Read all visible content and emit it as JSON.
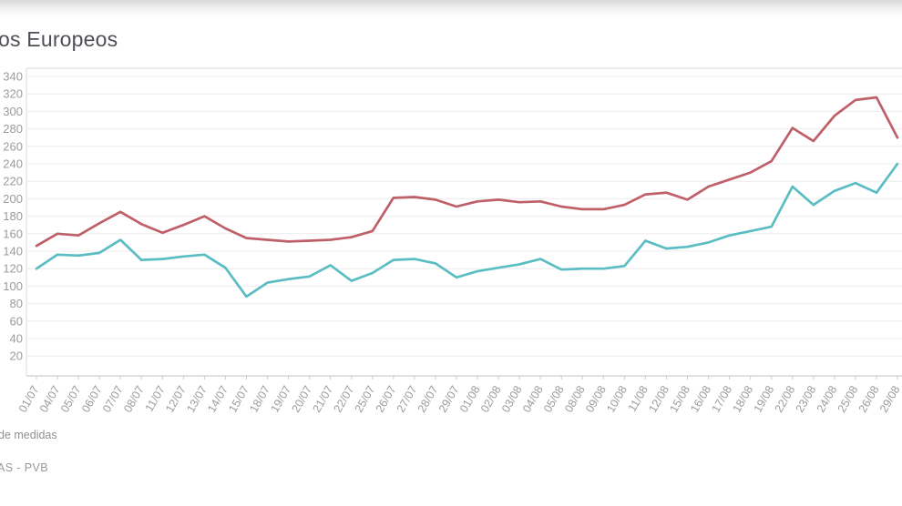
{
  "page": {
    "title_visible": "os Europeos",
    "footnote_line1": "de medidas",
    "footnote_line2": "AS - PVB"
  },
  "colors": {
    "title_text": "#4e4e57",
    "axis_label_text": "#9b9b9b",
    "grid_line": "#ececec",
    "plot_border": "#d9d9d9",
    "axis_line": "#c3c3c3",
    "tick_mark": "#cccccc",
    "series_red": "#bf6069",
    "series_teal": "#5abdc3"
  },
  "chart_data": {
    "type": "line",
    "title": "os Europeos",
    "xlabel": "",
    "ylabel": "",
    "ylim": [
      20,
      340
    ],
    "grid": true,
    "legend_position": "none",
    "y_tick_labels": [
      "340",
      "320",
      "300",
      "280",
      "260",
      "240",
      "220",
      "200",
      "180",
      "160",
      "140",
      "120",
      "100",
      "80",
      "60",
      "40",
      "20"
    ],
    "y_tick_values": [
      340,
      320,
      300,
      280,
      260,
      240,
      220,
      200,
      180,
      160,
      140,
      120,
      100,
      80,
      60,
      40,
      20
    ],
    "categories": [
      "01/07",
      "04/07",
      "05/07",
      "06/07",
      "07/07",
      "08/07",
      "11/07",
      "12/07",
      "13/07",
      "14/07",
      "15/07",
      "18/07",
      "19/07",
      "20/07",
      "21/07",
      "22/07",
      "25/07",
      "26/07",
      "27/07",
      "28/07",
      "29/07",
      "01/08",
      "02/08",
      "03/08",
      "04/08",
      "05/08",
      "08/08",
      "09/08",
      "10/08",
      "11/08",
      "12/08",
      "15/08",
      "16/08",
      "17/08",
      "18/08",
      "19/08",
      "22/08",
      "23/08",
      "24/08",
      "25/08",
      "26/08",
      "29/08"
    ],
    "series": [
      {
        "name": "red-series",
        "color": "#bf6069",
        "values": [
          146,
          160,
          158,
          172,
          185,
          171,
          161,
          170,
          180,
          166,
          155,
          153,
          151,
          152,
          153,
          156,
          163,
          201,
          202,
          199,
          191,
          197,
          199,
          196,
          197,
          191,
          188,
          188,
          193,
          205,
          207,
          199,
          214,
          222,
          230,
          243,
          281,
          266,
          295,
          313,
          316,
          270
        ]
      },
      {
        "name": "teal-series",
        "color": "#5abdc3",
        "values": [
          120,
          136,
          135,
          138,
          153,
          130,
          131,
          134,
          136,
          121,
          88,
          104,
          108,
          111,
          124,
          106,
          115,
          130,
          131,
          126,
          110,
          117,
          121,
          125,
          131,
          119,
          120,
          120,
          123,
          152,
          143,
          145,
          150,
          158,
          163,
          168,
          214,
          193,
          209,
          218,
          207,
          240
        ]
      }
    ]
  }
}
